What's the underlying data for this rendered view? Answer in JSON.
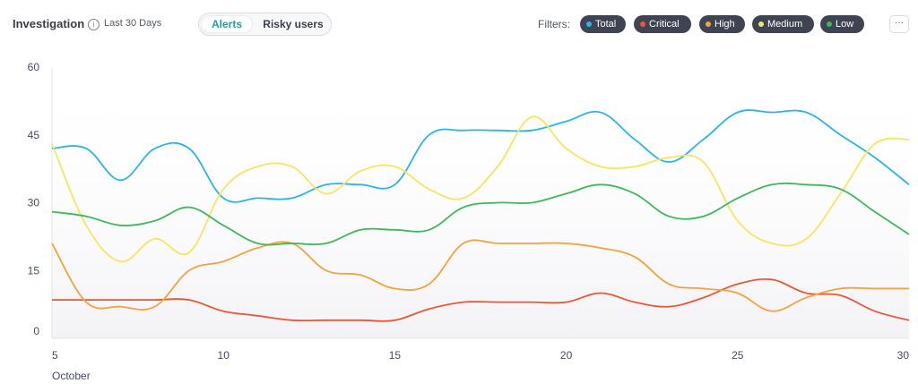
{
  "header": {
    "title": "Investigation",
    "range": "Last 30 Days",
    "toggle": {
      "active": "Alerts",
      "other": "Risky users"
    },
    "filters_label": "Filters:",
    "more_label": "···"
  },
  "filters": [
    {
      "label": "Total",
      "color": "#28b5e8"
    },
    {
      "label": "Critical",
      "color": "#ee5634"
    },
    {
      "label": "High",
      "color": "#f5a33c"
    },
    {
      "label": "Medium",
      "color": "#f8e55e"
    },
    {
      "label": "Low",
      "color": "#3db85c"
    }
  ],
  "chart_data": {
    "type": "line",
    "x_month_label": "October",
    "x": [
      5,
      6,
      7,
      8,
      9,
      10,
      11,
      12,
      13,
      14,
      15,
      16,
      17,
      18,
      19,
      20,
      21,
      22,
      23,
      24,
      25,
      26,
      27,
      28,
      29,
      30
    ],
    "xticks": [
      5,
      10,
      15,
      20,
      25,
      30
    ],
    "yticks": [
      0,
      15,
      30,
      45,
      60
    ],
    "xlim": [
      5,
      30
    ],
    "ylim": [
      0,
      60
    ],
    "series": [
      {
        "name": "Total",
        "color": "#28b5e8",
        "values": [
          42,
          42,
          35,
          42,
          42,
          31,
          31,
          31,
          34,
          34,
          34,
          45,
          46,
          46,
          46,
          48,
          50,
          44,
          39,
          44,
          50,
          50,
          50,
          45,
          40,
          34
        ]
      },
      {
        "name": "Critical",
        "color": "#ee5634",
        "values": [
          8.5,
          8.5,
          8.5,
          8.5,
          8.5,
          6,
          5,
          4,
          4,
          4,
          4,
          6.5,
          8,
          8,
          8,
          8,
          10,
          8,
          7,
          9,
          12,
          13,
          10,
          9.5,
          6,
          4
        ]
      },
      {
        "name": "High",
        "color": "#f5a33c",
        "values": [
          21,
          8,
          7,
          7,
          15,
          17,
          20,
          21,
          15,
          14,
          11,
          12,
          21,
          21,
          21,
          21,
          20,
          18,
          12,
          11,
          10,
          6,
          9,
          11,
          11,
          11
        ]
      },
      {
        "name": "Medium",
        "color": "#f8e55e",
        "values": [
          43,
          25,
          17,
          22,
          19,
          33,
          38,
          38,
          32,
          37,
          38,
          33,
          31,
          38,
          49,
          42,
          38,
          38,
          40,
          39,
          26,
          21,
          22,
          32,
          43,
          44
        ]
      },
      {
        "name": "Low",
        "color": "#3db85c",
        "values": [
          28,
          27,
          25,
          26,
          29,
          25,
          21,
          21,
          21,
          24,
          24,
          24,
          29,
          30,
          30,
          32,
          34,
          32,
          27,
          27,
          31,
          34,
          34,
          33,
          28,
          23
        ]
      }
    ]
  }
}
